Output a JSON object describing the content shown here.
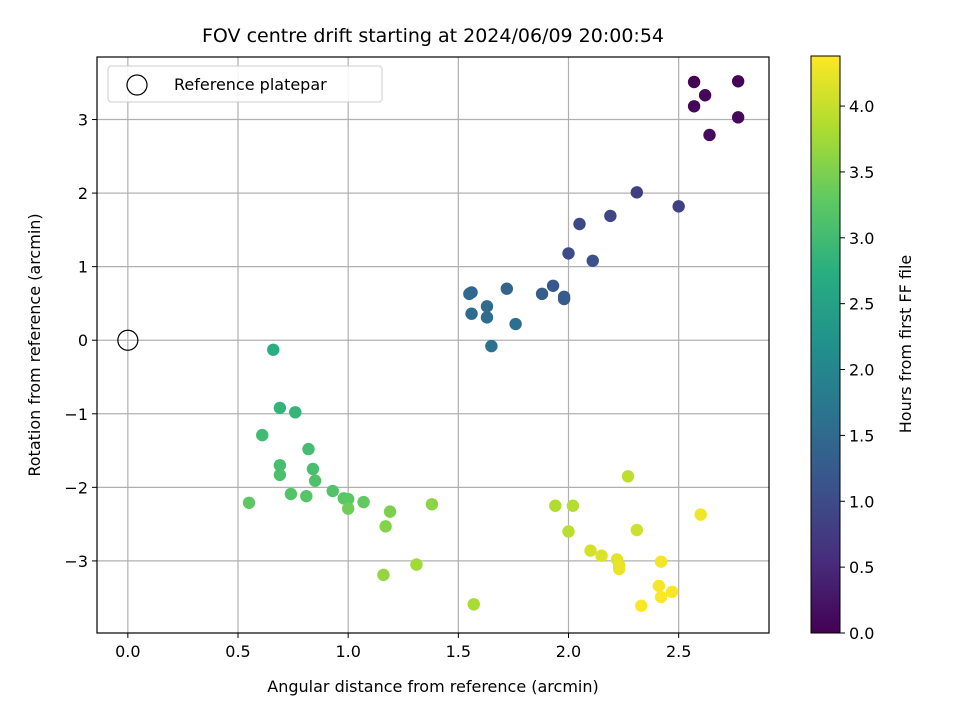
{
  "chart_data": {
    "type": "scatter",
    "title": "FOV centre drift starting at 2024/06/09 20:00:54",
    "xlabel": "Angular distance from reference (arcmin)",
    "ylabel": "Rotation from reference (arcmin)",
    "xlim": [
      -0.14,
      2.91
    ],
    "ylim": [
      -3.98,
      3.85
    ],
    "xticks": [
      0.0,
      0.5,
      1.0,
      1.5,
      2.0,
      2.5
    ],
    "xtick_labels": [
      "0.0",
      "0.5",
      "1.0",
      "1.5",
      "2.0",
      "2.5"
    ],
    "yticks": [
      -3,
      -2,
      -1,
      0,
      1,
      2,
      3
    ],
    "ytick_labels": [
      "−3",
      "−2",
      "−1",
      "0",
      "1",
      "2",
      "3"
    ],
    "grid": true,
    "legend": {
      "placement": "top-left",
      "entries": [
        "Reference platepar"
      ]
    },
    "reference_point": {
      "x": 0.0,
      "y": 0.0
    },
    "colorbar": {
      "label": "Hours from first FF file",
      "range": [
        0.0,
        4.38
      ],
      "ticks": [
        0.0,
        0.5,
        1.0,
        1.5,
        2.0,
        2.5,
        3.0,
        3.5,
        4.0
      ],
      "tick_labels": [
        "0.0",
        "0.5",
        "1.0",
        "1.5",
        "2.0",
        "2.5",
        "3.0",
        "3.5",
        "4.0"
      ],
      "colormap": "viridis"
    },
    "points": [
      {
        "x": 2.57,
        "y": 3.51,
        "c": 0.0
      },
      {
        "x": 2.77,
        "y": 3.52,
        "c": 0.03
      },
      {
        "x": 2.57,
        "y": 3.18,
        "c": 0.05
      },
      {
        "x": 2.62,
        "y": 3.33,
        "c": 0.08
      },
      {
        "x": 2.77,
        "y": 3.03,
        "c": 0.1
      },
      {
        "x": 2.64,
        "y": 2.79,
        "c": 0.12
      },
      {
        "x": 2.31,
        "y": 2.01,
        "c": 0.8
      },
      {
        "x": 2.5,
        "y": 1.82,
        "c": 0.85
      },
      {
        "x": 2.19,
        "y": 1.69,
        "c": 0.9
      },
      {
        "x": 2.05,
        "y": 1.58,
        "c": 0.95
      },
      {
        "x": 2.0,
        "y": 1.18,
        "c": 1.0
      },
      {
        "x": 2.11,
        "y": 1.08,
        "c": 1.05
      },
      {
        "x": 1.93,
        "y": 0.74,
        "c": 1.2
      },
      {
        "x": 1.98,
        "y": 0.59,
        "c": 1.22
      },
      {
        "x": 1.98,
        "y": 0.56,
        "c": 1.25
      },
      {
        "x": 1.88,
        "y": 0.63,
        "c": 1.3
      },
      {
        "x": 1.72,
        "y": 0.7,
        "c": 1.4
      },
      {
        "x": 1.56,
        "y": 0.65,
        "c": 1.45
      },
      {
        "x": 1.55,
        "y": 0.63,
        "c": 1.47
      },
      {
        "x": 1.63,
        "y": 0.46,
        "c": 1.5
      },
      {
        "x": 1.56,
        "y": 0.36,
        "c": 1.52
      },
      {
        "x": 1.63,
        "y": 0.31,
        "c": 1.55
      },
      {
        "x": 1.76,
        "y": 0.22,
        "c": 1.6
      },
      {
        "x": 1.65,
        "y": -0.08,
        "c": 1.65
      },
      {
        "x": 0.66,
        "y": -0.13,
        "c": 2.75
      },
      {
        "x": 0.69,
        "y": -0.92,
        "c": 2.85
      },
      {
        "x": 0.76,
        "y": -0.98,
        "c": 2.87
      },
      {
        "x": 0.61,
        "y": -1.29,
        "c": 3.0
      },
      {
        "x": 0.82,
        "y": -1.48,
        "c": 3.02
      },
      {
        "x": 0.69,
        "y": -1.7,
        "c": 3.05
      },
      {
        "x": 0.84,
        "y": -1.75,
        "c": 3.07
      },
      {
        "x": 0.69,
        "y": -1.83,
        "c": 3.1
      },
      {
        "x": 0.85,
        "y": -1.91,
        "c": 3.12
      },
      {
        "x": 0.93,
        "y": -2.05,
        "c": 3.15
      },
      {
        "x": 0.74,
        "y": -2.09,
        "c": 3.17
      },
      {
        "x": 0.81,
        "y": -2.12,
        "c": 3.2
      },
      {
        "x": 0.98,
        "y": -2.15,
        "c": 3.22
      },
      {
        "x": 1.0,
        "y": -2.16,
        "c": 3.25
      },
      {
        "x": 0.55,
        "y": -2.21,
        "c": 3.27
      },
      {
        "x": 1.07,
        "y": -2.2,
        "c": 3.3
      },
      {
        "x": 1.0,
        "y": -2.29,
        "c": 3.4
      },
      {
        "x": 1.19,
        "y": -2.33,
        "c": 3.5
      },
      {
        "x": 1.17,
        "y": -2.53,
        "c": 3.55
      },
      {
        "x": 1.38,
        "y": -2.23,
        "c": 3.6
      },
      {
        "x": 1.16,
        "y": -3.19,
        "c": 3.65
      },
      {
        "x": 1.31,
        "y": -3.05,
        "c": 3.75
      },
      {
        "x": 1.57,
        "y": -3.59,
        "c": 3.8
      },
      {
        "x": 1.94,
        "y": -2.25,
        "c": 3.85
      },
      {
        "x": 2.02,
        "y": -2.25,
        "c": 3.88
      },
      {
        "x": 2.0,
        "y": -2.6,
        "c": 3.92
      },
      {
        "x": 2.27,
        "y": -1.85,
        "c": 3.95
      },
      {
        "x": 2.31,
        "y": -2.58,
        "c": 4.05
      },
      {
        "x": 2.1,
        "y": -2.86,
        "c": 4.1
      },
      {
        "x": 2.15,
        "y": -2.93,
        "c": 4.15
      },
      {
        "x": 2.22,
        "y": -2.98,
        "c": 4.2
      },
      {
        "x": 2.23,
        "y": -3.06,
        "c": 4.22
      },
      {
        "x": 2.23,
        "y": -3.11,
        "c": 4.25
      },
      {
        "x": 2.6,
        "y": -2.37,
        "c": 4.3
      },
      {
        "x": 2.42,
        "y": -3.01,
        "c": 4.32
      },
      {
        "x": 2.41,
        "y": -3.34,
        "c": 4.33
      },
      {
        "x": 2.47,
        "y": -3.42,
        "c": 4.35
      },
      {
        "x": 2.42,
        "y": -3.49,
        "c": 4.36
      },
      {
        "x": 2.33,
        "y": -3.61,
        "c": 4.37
      }
    ]
  }
}
